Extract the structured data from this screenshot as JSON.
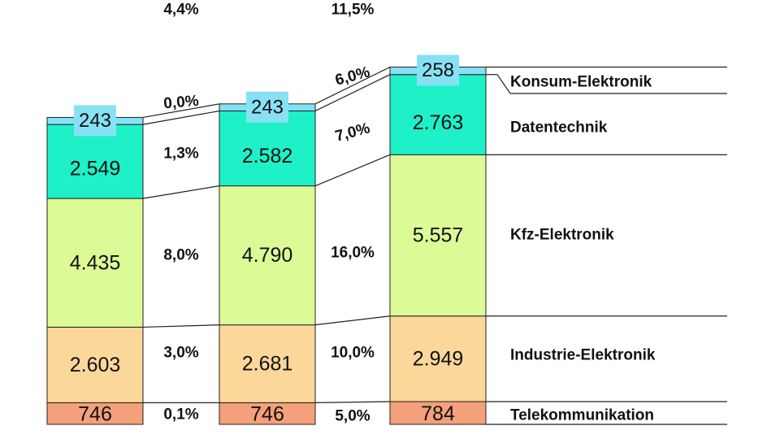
{
  "chart_data": {
    "type": "bar",
    "stacked": true,
    "categories": [
      "",
      "",
      ""
    ],
    "series": [
      {
        "name": "Telekommunikation",
        "values": [
          "746",
          "746",
          "784"
        ],
        "color": "#f4a07a"
      },
      {
        "name": "Industrie-Elektronik",
        "values": [
          "2.603",
          "2.681",
          "2.949"
        ],
        "color": "#fcd79a"
      },
      {
        "name": "Kfz-Elektronik",
        "values": [
          "4.435",
          "4.790",
          "5.557"
        ],
        "color": "#dcfa96"
      },
      {
        "name": "Datentechnik",
        "values": [
          "2.549",
          "2.582",
          "2.763"
        ],
        "color": "#1ef0c8"
      },
      {
        "name": "Konsum-Elektronik",
        "values": [
          "243",
          "243",
          "258"
        ],
        "color": "#87e1f5"
      }
    ],
    "growth_rates": {
      "total": [
        "4,4%",
        "11,5%"
      ],
      "Konsum-Elektronik": [
        "0,0%",
        "6,0%"
      ],
      "Datentechnik": [
        "1,3%",
        "7,0%"
      ],
      "Kfz-Elektronik": [
        "8,0%",
        "16,0%"
      ],
      "Industrie-Elektronik": [
        "3,0%",
        "10,0%"
      ],
      "Telekommunikation": [
        "0,1%",
        "5,0%"
      ]
    },
    "legend_position": "right"
  }
}
